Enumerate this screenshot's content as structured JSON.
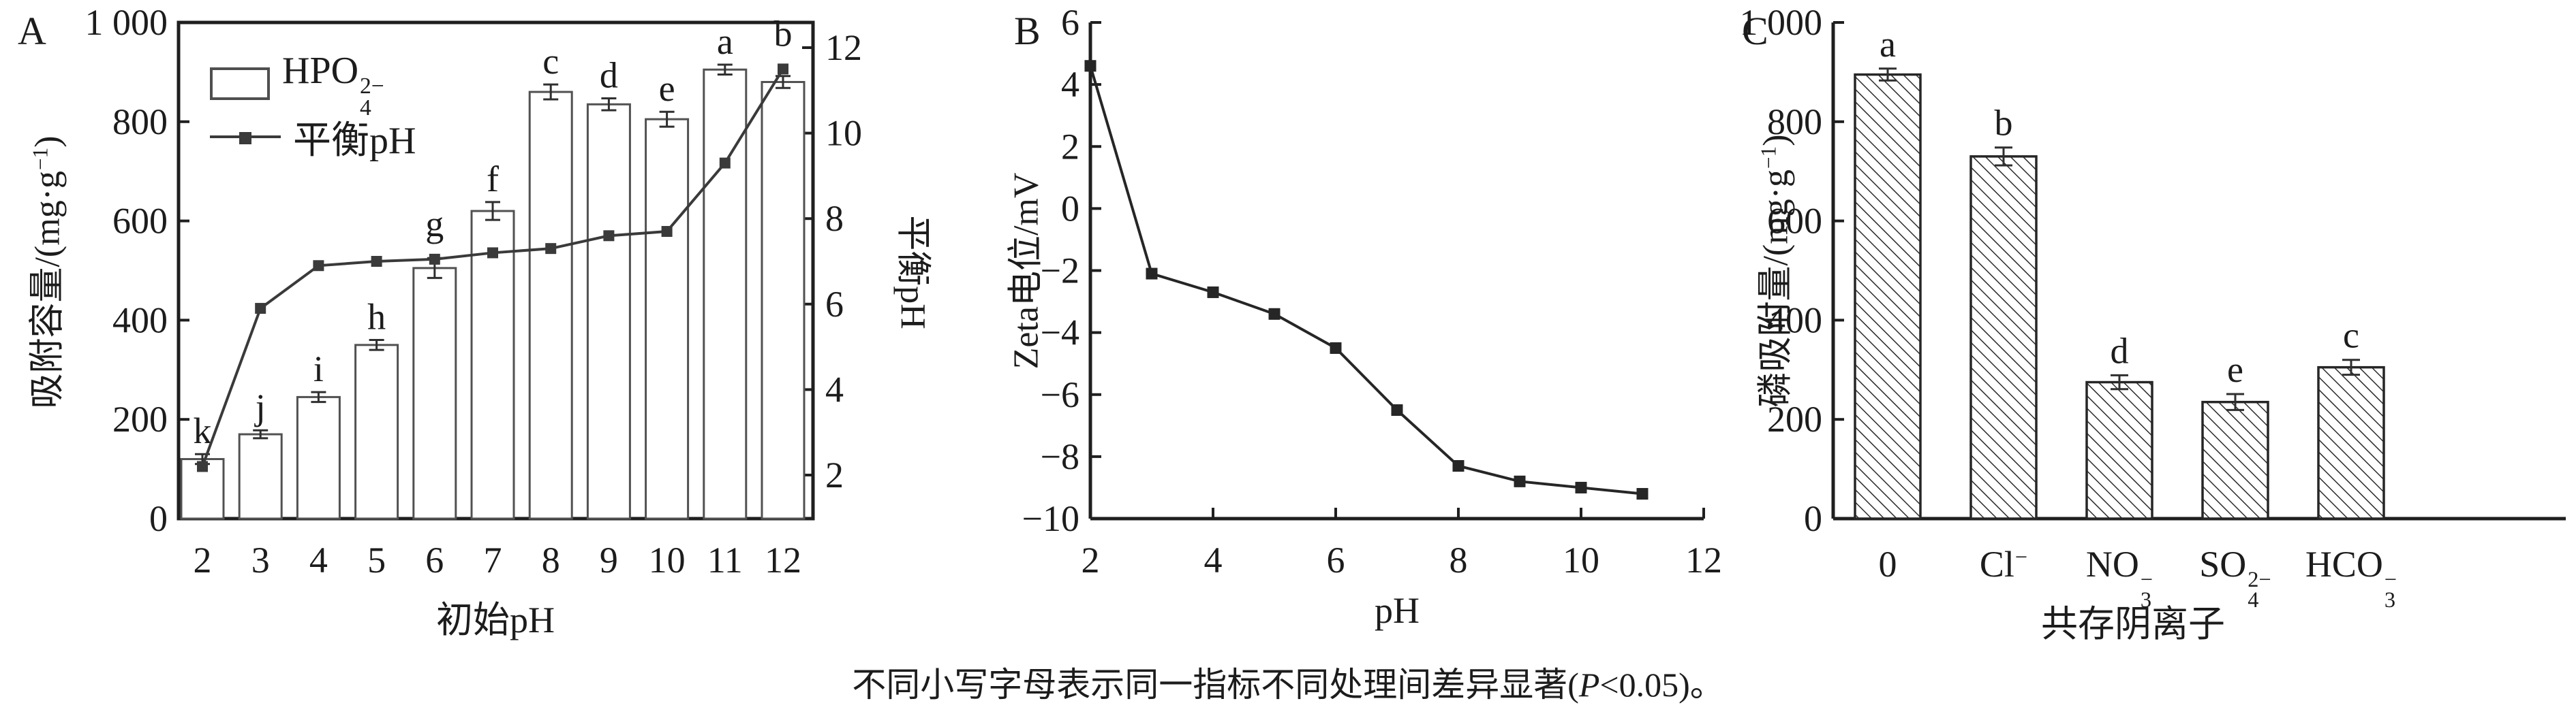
{
  "panels": {
    "a": {
      "label": "A",
      "yl_pre": "吸附容量/(mg·g",
      "yl_sup": "−1",
      "yl_post": ")",
      "yr_label": "平衡pH",
      "xlabel": "初始pH",
      "legend_bar_main": "HPO",
      "legend_bar_sup": "2−",
      "legend_bar_sub": "4",
      "legend_line_label": "平衡pH"
    },
    "b": {
      "label": "B",
      "ylabel": "Zeta电位/mV",
      "xlabel": "pH"
    },
    "c": {
      "label": "C",
      "yl_pre": "磷吸附量/(mg·g",
      "yl_sup": "−1",
      "yl_post": ")",
      "xlabel": "共存阴离子"
    }
  },
  "caption": {
    "pre": "不同小写字母表示同一指标不同处理间差异显著(",
    "p": "P",
    "post": "<0.05)。"
  },
  "chart_data": [
    {
      "id": "A",
      "type": "bar+line",
      "categories": [
        2,
        3,
        4,
        5,
        6,
        7,
        8,
        9,
        10,
        11,
        12
      ],
      "xlabel": "初始pH",
      "ylabel_left": "吸附容量/(mg·g−1)",
      "ylabel_right": "平衡pH",
      "ylim_left": [
        0,
        1000
      ],
      "yticks_left": [
        0,
        200,
        400,
        600,
        800,
        1000
      ],
      "ylim_right": [
        2,
        12
      ],
      "yticks_right": [
        2,
        4,
        6,
        8,
        10,
        12
      ],
      "grid": false,
      "legend_position": "upper-left",
      "bar_series": {
        "name": "HPO4 2−",
        "values": [
          120,
          170,
          245,
          350,
          505,
          620,
          860,
          835,
          805,
          905,
          880
        ],
        "errors": [
          10,
          8,
          10,
          10,
          20,
          18,
          15,
          12,
          15,
          10,
          12
        ],
        "letters": [
          "k",
          "j",
          "i",
          "h",
          "g",
          "f",
          "c",
          "d",
          "e",
          "a",
          "b"
        ]
      },
      "line_series": {
        "name": "平衡pH",
        "values": [
          2.2,
          5.9,
          6.9,
          7.0,
          7.05,
          7.2,
          7.3,
          7.6,
          7.7,
          9.3,
          11.5
        ]
      }
    },
    {
      "id": "B",
      "type": "line",
      "x": [
        2,
        3,
        4,
        5,
        6,
        7,
        8,
        9,
        10,
        11
      ],
      "y": [
        4.6,
        -2.1,
        -2.7,
        -3.4,
        -4.5,
        -6.5,
        -8.3,
        -8.8,
        -9.0,
        -9.2
      ],
      "errors": [
        0.15,
        0.15,
        0.15,
        0.15,
        0.15,
        0.15,
        0.15,
        0.15,
        0.15,
        0.15
      ],
      "xlabel": "pH",
      "ylabel": "Zeta电位/mV",
      "xlim": [
        2,
        12
      ],
      "xticks": [
        2,
        4,
        6,
        8,
        10,
        12
      ],
      "ylim": [
        -10,
        6
      ],
      "yticks": [
        6,
        4,
        2,
        0,
        -2,
        -4,
        -6,
        -8,
        -10
      ],
      "grid": false
    },
    {
      "id": "C",
      "type": "bar",
      "categories": [
        {
          "main": "0"
        },
        {
          "main": "Cl",
          "sup": "−"
        },
        {
          "main": "NO",
          "sub": "3",
          "sup": "−"
        },
        {
          "main": "SO",
          "sub": "4",
          "sup": "2−"
        },
        {
          "main": "HCO",
          "sub": "3",
          "sup": "−"
        }
      ],
      "values": [
        895,
        730,
        275,
        235,
        305
      ],
      "errors": [
        12,
        18,
        14,
        16,
        15
      ],
      "letters": [
        "a",
        "b",
        "d",
        "e",
        "c"
      ],
      "xlabel": "共存阴离子",
      "ylabel": "磷吸附量/(mg·g−1)",
      "ylim": [
        0,
        1000
      ],
      "yticks": [
        0,
        200,
        400,
        600,
        800,
        1000
      ],
      "grid": false,
      "bar_style": "diagonal-hatch"
    }
  ],
  "colors": {
    "axis": "#1f1f1f",
    "bar_stroke_a": "#515151",
    "bar_stroke_c": "#262626",
    "line": "#3a3a3a",
    "error": "#2f2f2f",
    "text": "#1c1c1c"
  }
}
